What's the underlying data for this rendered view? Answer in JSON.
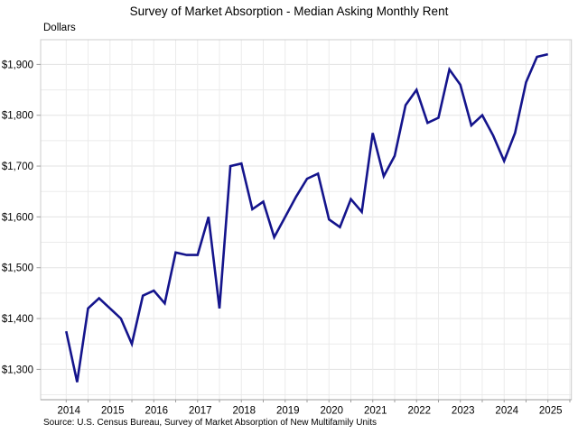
{
  "title": "Survey of Market Absorption - Median Asking Monthly Rent",
  "y_axis_label": "Dollars",
  "source": "Source: U.S. Census Bureau, Survey of Market Absorption of New Multifamily Units",
  "colors": {
    "line": "#14148c",
    "grid_minor": "#ebebeb",
    "grid_major": "#e3e3e3",
    "plot_border": "#cccccc",
    "axis_line": "#9e9e9e",
    "tick": "#9e9e9e",
    "text": "#000000"
  },
  "chart_data": {
    "type": "line",
    "title": "Survey of Market Absorption - Median Asking Monthly Rent",
    "xlabel": "",
    "ylabel": "Dollars",
    "grid": true,
    "legend": "none",
    "ylim": [
      1240,
      1949
    ],
    "y_ticks": [
      1300,
      1400,
      1500,
      1600,
      1700,
      1800,
      1900
    ],
    "y_tick_labels": [
      "$1,300",
      "$1,400",
      "$1,500",
      "$1,600",
      "$1,700",
      "$1,800",
      "$1,900"
    ],
    "y_minor_grid_step": 50,
    "x_tick_labels": [
      "2014",
      "2015",
      "2016",
      "2017",
      "2018",
      "2019",
      "2020",
      "2021",
      "2022",
      "2023",
      "2024",
      "2025"
    ],
    "series": [
      {
        "name": "Median asking monthly rent (dollars)",
        "x": [
          "2014 Q1",
          "2014 Q2",
          "2014 Q3",
          "2014 Q4",
          "2015 Q1",
          "2015 Q2",
          "2015 Q3",
          "2015 Q4",
          "2016 Q1",
          "2016 Q2",
          "2016 Q3",
          "2016 Q4",
          "2017 Q1",
          "2017 Q2",
          "2017 Q3",
          "2017 Q4",
          "2018 Q1",
          "2018 Q2",
          "2018 Q3",
          "2018 Q4",
          "2019 Q1",
          "2019 Q2",
          "2019 Q3",
          "2019 Q4",
          "2020 Q1",
          "2020 Q2",
          "2020 Q3",
          "2020 Q4",
          "2021 Q1",
          "2021 Q2",
          "2021 Q3",
          "2021 Q4",
          "2022 Q1",
          "2022 Q2",
          "2022 Q3",
          "2022 Q4",
          "2023 Q1",
          "2023 Q2",
          "2023 Q3",
          "2023 Q4",
          "2024 Q1",
          "2024 Q2",
          "2024 Q3",
          "2024 Q4",
          "2025 Q1"
        ],
        "values": [
          1375,
          1275,
          1420,
          1440,
          1420,
          1400,
          1350,
          1445,
          1455,
          1430,
          1530,
          1525,
          1525,
          1600,
          1420,
          1700,
          1705,
          1615,
          1630,
          1560,
          1600,
          1640,
          1675,
          1685,
          1595,
          1580,
          1635,
          1610,
          1765,
          1680,
          1720,
          1820,
          1850,
          1785,
          1795,
          1890,
          1860,
          1780,
          1800,
          1760,
          1710,
          1765,
          1865,
          1915,
          1920
        ]
      }
    ]
  }
}
